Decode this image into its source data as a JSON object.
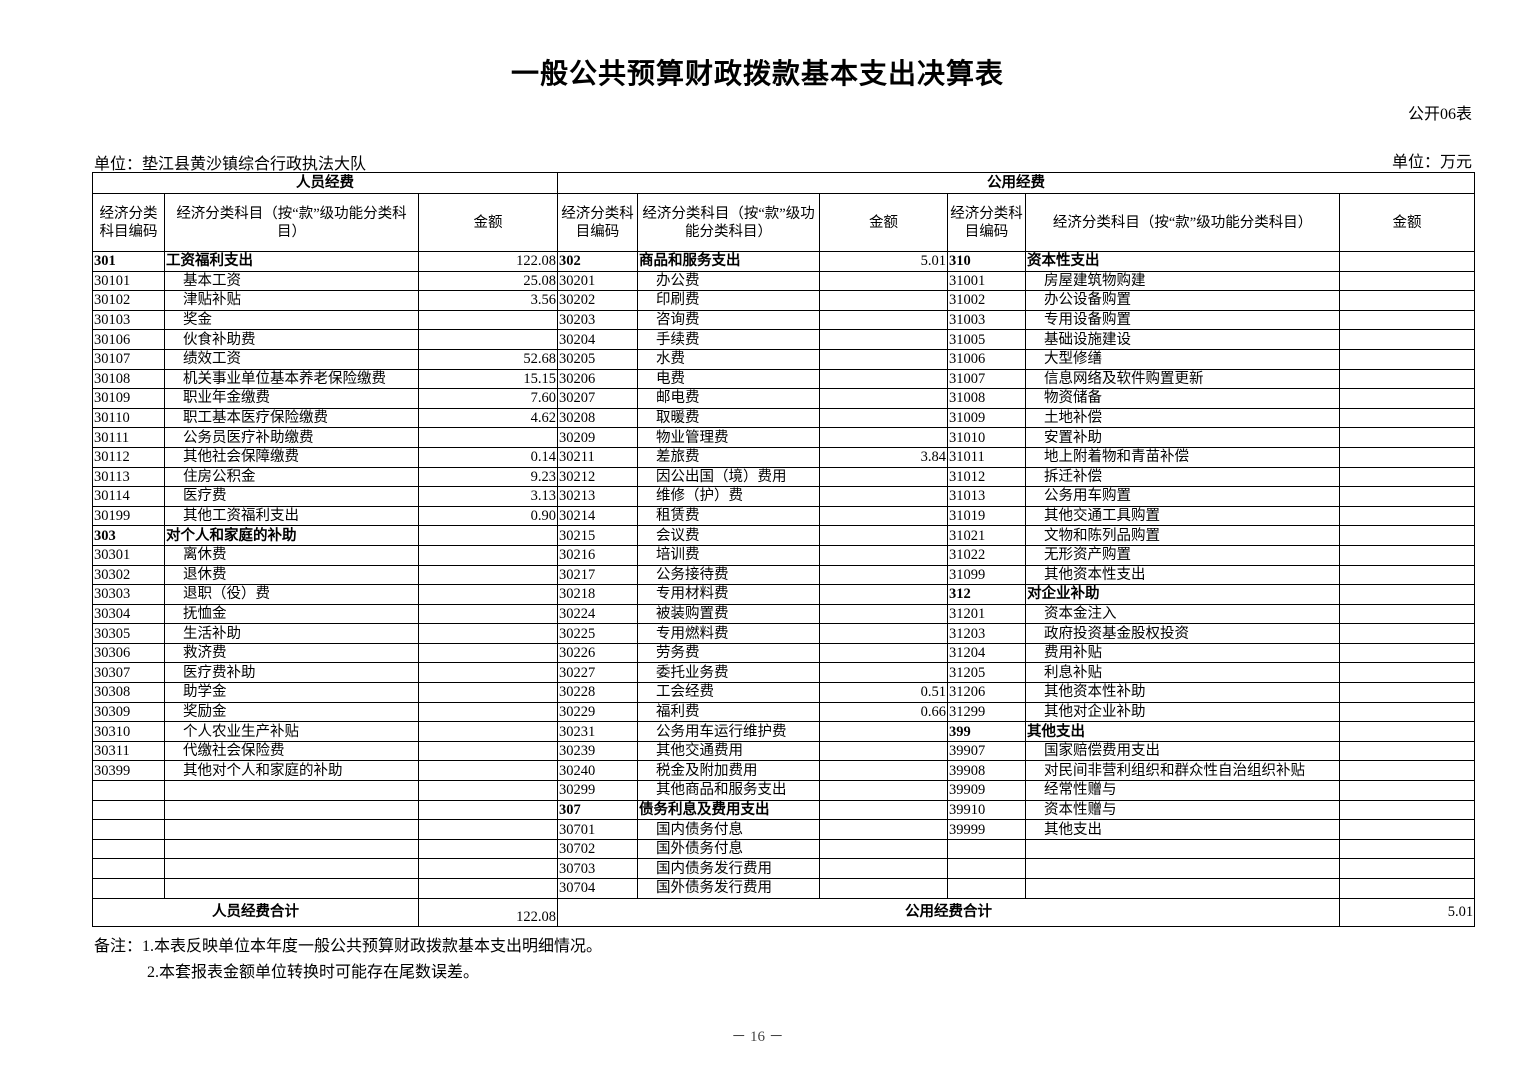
{
  "title": "一般公共预算财政拨款基本支出决算表",
  "form_no": "公开06表",
  "unit_left": "单位：垫江县黄沙镇综合行政执法大队",
  "unit_right": "单位：万元",
  "headers": {
    "personnel": "人员经费",
    "public": "公用经费",
    "code": "经济分类科目编码",
    "name_left": "经济分类科目（按“款”级功能分类科目）",
    "name_mid": "经济分类科目（按“款”级功能分类科目）",
    "name_right": "经济分类科目（按“款”级功能分类科目）",
    "amount": "金额"
  },
  "rows_left": [
    [
      "301",
      "工资福利支出",
      "122.08"
    ],
    [
      "30101",
      "基本工资",
      "25.08"
    ],
    [
      "30102",
      "津贴补贴",
      "3.56"
    ],
    [
      "30103",
      "奖金",
      ""
    ],
    [
      "30106",
      "伙食补助费",
      ""
    ],
    [
      "30107",
      "绩效工资",
      "52.68"
    ],
    [
      "30108",
      "机关事业单位基本养老保险缴费",
      "15.15"
    ],
    [
      "30109",
      "职业年金缴费",
      "7.60"
    ],
    [
      "30110",
      "职工基本医疗保险缴费",
      "4.62"
    ],
    [
      "30111",
      "公务员医疗补助缴费",
      ""
    ],
    [
      "30112",
      "其他社会保障缴费",
      "0.14"
    ],
    [
      "30113",
      "住房公积金",
      "9.23"
    ],
    [
      "30114",
      "医疗费",
      "3.13"
    ],
    [
      "30199",
      "其他工资福利支出",
      "0.90"
    ],
    [
      "303",
      "对个人和家庭的补助",
      ""
    ],
    [
      "30301",
      "离休费",
      ""
    ],
    [
      "30302",
      "退休费",
      ""
    ],
    [
      "30303",
      "退职（役）费",
      ""
    ],
    [
      "30304",
      "抚恤金",
      ""
    ],
    [
      "30305",
      "生活补助",
      ""
    ],
    [
      "30306",
      "救济费",
      ""
    ],
    [
      "30307",
      "医疗费补助",
      ""
    ],
    [
      "30308",
      "助学金",
      ""
    ],
    [
      "30309",
      "奖励金",
      ""
    ],
    [
      "30310",
      "个人农业生产补贴",
      ""
    ],
    [
      "30311",
      "代缴社会保险费",
      ""
    ],
    [
      "30399",
      "其他对个人和家庭的补助",
      ""
    ],
    [
      "",
      "",
      ""
    ],
    [
      "",
      "",
      ""
    ],
    [
      "",
      "",
      ""
    ],
    [
      "",
      "",
      ""
    ],
    [
      "",
      "",
      ""
    ],
    [
      "",
      "",
      ""
    ]
  ],
  "rows_mid": [
    [
      "302",
      "商品和服务支出",
      "5.01"
    ],
    [
      "30201",
      "办公费",
      ""
    ],
    [
      "30202",
      "印刷费",
      ""
    ],
    [
      "30203",
      "咨询费",
      ""
    ],
    [
      "30204",
      "手续费",
      ""
    ],
    [
      "30205",
      "水费",
      ""
    ],
    [
      "30206",
      "电费",
      ""
    ],
    [
      "30207",
      "邮电费",
      ""
    ],
    [
      "30208",
      "取暖费",
      ""
    ],
    [
      "30209",
      "物业管理费",
      ""
    ],
    [
      "30211",
      "差旅费",
      "3.84"
    ],
    [
      "30212",
      "因公出国（境）费用",
      ""
    ],
    [
      "30213",
      "维修（护）费",
      ""
    ],
    [
      "30214",
      "租赁费",
      ""
    ],
    [
      "30215",
      "会议费",
      ""
    ],
    [
      "30216",
      "培训费",
      ""
    ],
    [
      "30217",
      "公务接待费",
      ""
    ],
    [
      "30218",
      "专用材料费",
      ""
    ],
    [
      "30224",
      "被装购置费",
      ""
    ],
    [
      "30225",
      "专用燃料费",
      ""
    ],
    [
      "30226",
      "劳务费",
      ""
    ],
    [
      "30227",
      "委托业务费",
      ""
    ],
    [
      "30228",
      "工会经费",
      "0.51"
    ],
    [
      "30229",
      "福利费",
      "0.66"
    ],
    [
      "30231",
      "公务用车运行维护费",
      ""
    ],
    [
      "30239",
      "其他交通费用",
      ""
    ],
    [
      "30240",
      "税金及附加费用",
      ""
    ],
    [
      "30299",
      "其他商品和服务支出",
      ""
    ],
    [
      "307",
      "债务利息及费用支出",
      ""
    ],
    [
      "30701",
      "国内债务付息",
      ""
    ],
    [
      "30702",
      "国外债务付息",
      ""
    ],
    [
      "30703",
      "国内债务发行费用",
      ""
    ],
    [
      "30704",
      "国外债务发行费用",
      ""
    ]
  ],
  "rows_right": [
    [
      "310",
      "资本性支出",
      ""
    ],
    [
      "31001",
      "房屋建筑物购建",
      ""
    ],
    [
      "31002",
      "办公设备购置",
      ""
    ],
    [
      "31003",
      "专用设备购置",
      ""
    ],
    [
      "31005",
      "基础设施建设",
      ""
    ],
    [
      "31006",
      "大型修缮",
      ""
    ],
    [
      "31007",
      "信息网络及软件购置更新",
      ""
    ],
    [
      "31008",
      "物资储备",
      ""
    ],
    [
      "31009",
      "土地补偿",
      ""
    ],
    [
      "31010",
      "安置补助",
      ""
    ],
    [
      "31011",
      "地上附着物和青苗补偿",
      ""
    ],
    [
      "31012",
      "拆迁补偿",
      ""
    ],
    [
      "31013",
      "公务用车购置",
      ""
    ],
    [
      "31019",
      "其他交通工具购置",
      ""
    ],
    [
      "31021",
      "文物和陈列品购置",
      ""
    ],
    [
      "31022",
      "无形资产购置",
      ""
    ],
    [
      "31099",
      "其他资本性支出",
      ""
    ],
    [
      "312",
      "对企业补助",
      ""
    ],
    [
      "31201",
      "资本金注入",
      ""
    ],
    [
      "31203",
      "政府投资基金股权投资",
      ""
    ],
    [
      "31204",
      "费用补贴",
      ""
    ],
    [
      "31205",
      "利息补贴",
      ""
    ],
    [
      "31206",
      "其他资本性补助",
      ""
    ],
    [
      "31299",
      "其他对企业补助",
      ""
    ],
    [
      "399",
      "其他支出",
      ""
    ],
    [
      "39907",
      "国家赔偿费用支出",
      ""
    ],
    [
      "39908",
      "对民间非营利组织和群众性自治组织补贴",
      ""
    ],
    [
      "39909",
      "经常性赠与",
      ""
    ],
    [
      "39910",
      "资本性赠与",
      ""
    ],
    [
      "39999",
      "其他支出",
      ""
    ],
    [
      "",
      "",
      ""
    ],
    [
      "",
      "",
      ""
    ],
    [
      "",
      "",
      ""
    ]
  ],
  "totals": {
    "personnel_label": "人员经费合计",
    "personnel_amount": "122.08",
    "public_label": "公用经费合计",
    "public_amount": "5.01"
  },
  "notes": [
    "备注：1.本表反映单位本年度一般公共预算财政拨款基本支出明细情况。",
    "2.本套报表金额单位转换时可能存在尾数误差。"
  ],
  "page_number": "－ 16 －"
}
